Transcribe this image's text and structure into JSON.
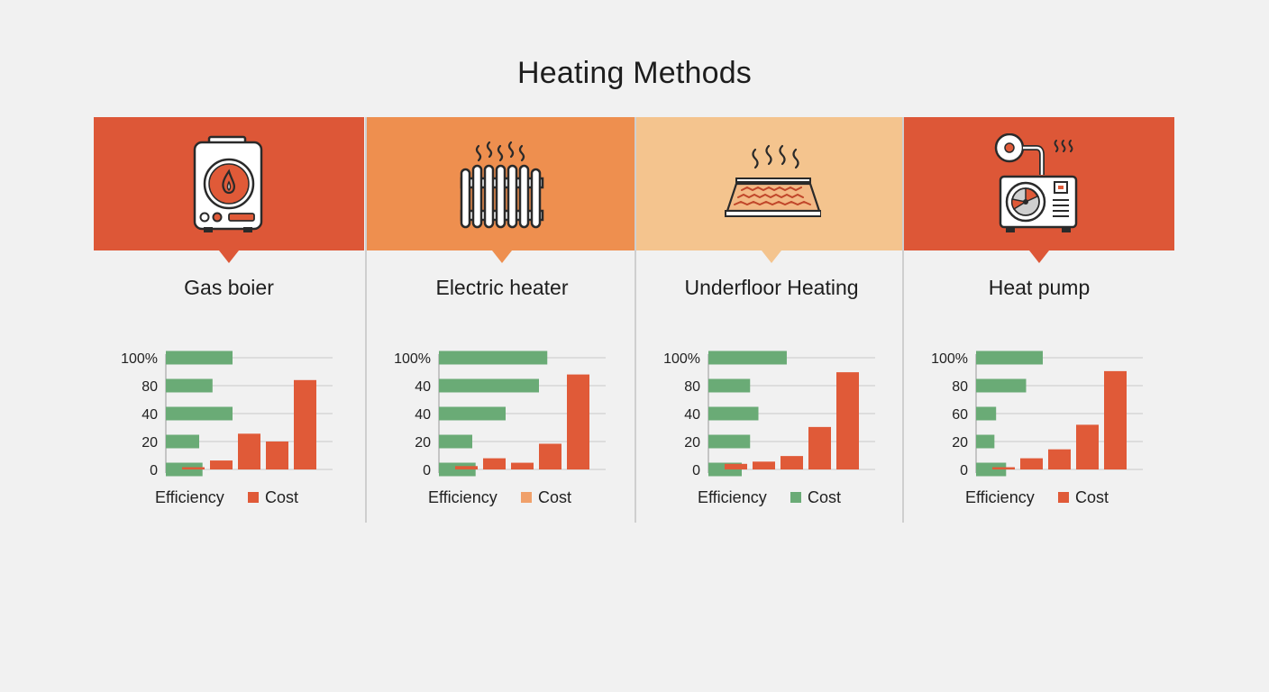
{
  "title": "Heating Methods",
  "colors": {
    "efficiency": "#6aab76",
    "cost": "#e05a38",
    "gridline": "#c9c9c9"
  },
  "methods": [
    {
      "name": "Gas boier",
      "icon": "gas-boiler-icon",
      "banner_color": "#dd5737",
      "legend": {
        "efficiency": "Efficiency",
        "cost": "Cost",
        "cost_swatch_color": "#e05a38"
      }
    },
    {
      "name": "Electric heater",
      "icon": "radiator-icon",
      "banner_color": "#ee8f4f",
      "legend": {
        "efficiency": "Efficiency",
        "cost": "Cost",
        "cost_swatch_color": "#f0a06a"
      }
    },
    {
      "name": "Underfloor Heating",
      "icon": "underfloor-heating-icon",
      "banner_color": "#f4c48e",
      "legend": {
        "efficiency": "Efficiency",
        "cost": "Cost",
        "cost_swatch_color": "#6aab76"
      }
    },
    {
      "name": "Heat pump",
      "icon": "heat-pump-icon",
      "banner_color": "#dd5737",
      "legend": {
        "efficiency": "Efficiency",
        "cost": "Cost",
        "cost_swatch_color": "#e05a38"
      }
    }
  ],
  "chart_data": [
    {
      "type": "bar",
      "title": "Gas boier",
      "y_tick_labels": [
        "100%",
        "80",
        "40",
        "20",
        "0"
      ],
      "ylim": [
        0,
        100
      ],
      "grid": true,
      "legend_position": "bottom",
      "series": [
        {
          "name": "Efficiency",
          "orientation": "horizontal",
          "values": [
            40,
            28,
            40,
            20,
            22
          ]
        },
        {
          "name": "Cost",
          "orientation": "vertical",
          "values": [
            2,
            8,
            32,
            25,
            80
          ]
        }
      ]
    },
    {
      "type": "bar",
      "title": "Electric heater",
      "y_tick_labels": [
        "100%",
        "40",
        "40",
        "20",
        "0"
      ],
      "ylim": [
        0,
        100
      ],
      "grid": true,
      "legend_position": "bottom",
      "series": [
        {
          "name": "Efficiency",
          "orientation": "horizontal",
          "values": [
            65,
            60,
            40,
            20,
            22
          ]
        },
        {
          "name": "Cost",
          "orientation": "vertical",
          "values": [
            3,
            10,
            6,
            23,
            85
          ]
        }
      ]
    },
    {
      "type": "bar",
      "title": "Underfloor Heating",
      "y_tick_labels": [
        "100%",
        "80",
        "40",
        "20",
        "0"
      ],
      "ylim": [
        0,
        100
      ],
      "grid": true,
      "legend_position": "bottom",
      "series": [
        {
          "name": "Efficiency",
          "orientation": "horizontal",
          "values": [
            47,
            25,
            30,
            25,
            20
          ]
        },
        {
          "name": "Cost",
          "orientation": "vertical",
          "values": [
            5,
            7,
            12,
            38,
            87
          ]
        }
      ]
    },
    {
      "type": "bar",
      "title": "Heat pump",
      "y_tick_labels": [
        "100%",
        "80",
        "60",
        "20",
        "0"
      ],
      "ylim": [
        0,
        100
      ],
      "grid": true,
      "legend_position": "bottom",
      "series": [
        {
          "name": "Efficiency",
          "orientation": "horizontal",
          "values": [
            40,
            30,
            12,
            11,
            18
          ]
        },
        {
          "name": "Cost",
          "orientation": "vertical",
          "values": [
            2,
            10,
            18,
            40,
            88
          ]
        }
      ]
    }
  ]
}
